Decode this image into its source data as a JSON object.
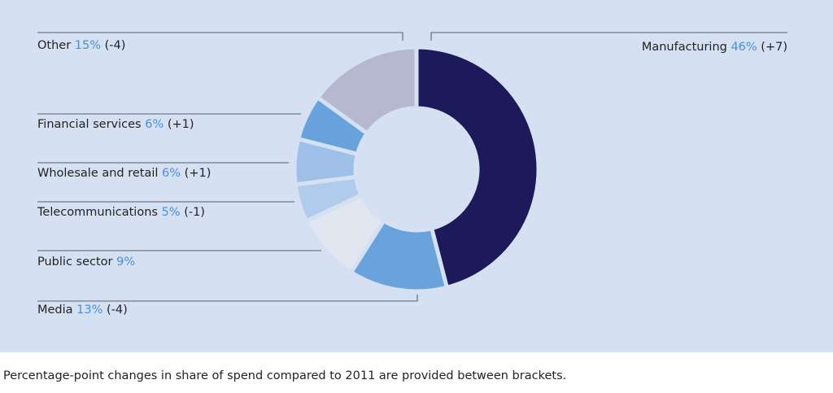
{
  "chart_data": {
    "type": "donut",
    "categories": [
      "Manufacturing",
      "Media",
      "Public sector",
      "Telecommunications",
      "Wholesale and retail",
      "Financial services",
      "Other"
    ],
    "values": [
      46,
      13,
      9,
      5,
      6,
      6,
      15
    ],
    "value_labels": [
      "46%",
      "13%",
      "9%",
      "5%",
      "6%",
      "6%",
      "15%"
    ],
    "changes": [
      "(+7)",
      "(-4)",
      null,
      "(-1)",
      "(+1)",
      "(+1)",
      "(-4)"
    ],
    "colors": [
      "#1c1a5b",
      "#6aa3dc",
      "#e1e7f0",
      "#b1cbec",
      "#9ebfe8",
      "#68a2dd",
      "#b6b8cf"
    ],
    "footnote": "Percentage-point changes in share of spend compared to 2011 are provided between brackets."
  }
}
